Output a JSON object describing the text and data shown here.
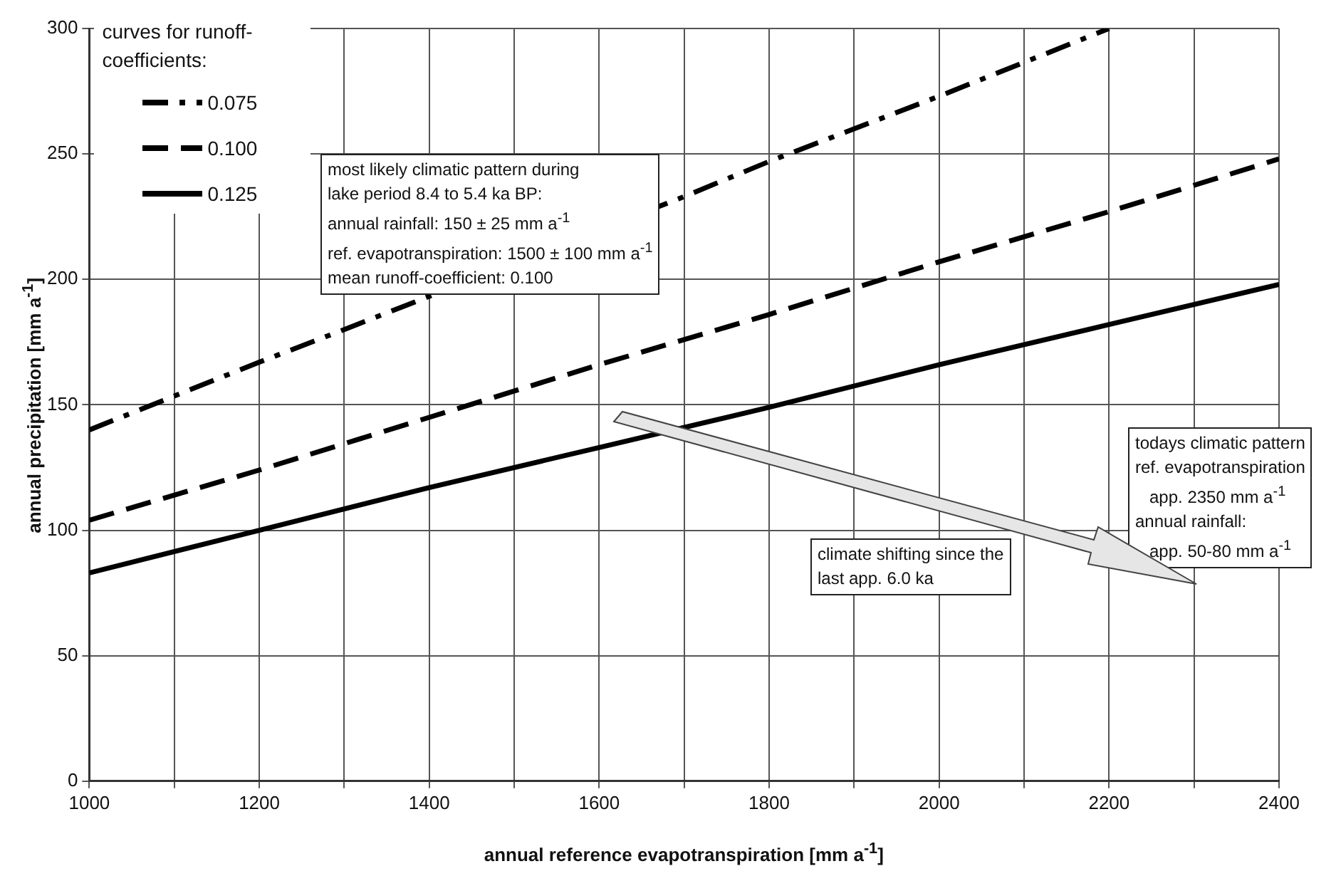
{
  "chart_data": {
    "type": "line",
    "xlabel": "annual reference evapotranspiration [mm a$^{-1}$]",
    "ylabel": "annual precipitation [mm a$^{-1}$]",
    "legend_title": "curves for runoff-coefficients:",
    "x": [
      1000,
      1200,
      1400,
      1600,
      1800,
      2000,
      2200,
      2400
    ],
    "series": [
      {
        "name": "0.075",
        "color": "#000000",
        "line_style": "dashdot",
        "x": [
          1000,
          1200,
          1300,
          1700,
          1800,
          2000,
          2200
        ],
        "values": [
          140,
          167,
          180,
          233,
          247,
          273,
          300
        ]
      },
      {
        "name": "0.100",
        "color": "#000000",
        "line_style": "dashed",
        "values": [
          104,
          124,
          145,
          166,
          186,
          207,
          227,
          248
        ]
      },
      {
        "name": "0.125",
        "color": "#000000",
        "line_style": "solid",
        "values": [
          83,
          100,
          117,
          133,
          149,
          166,
          182,
          198
        ]
      }
    ],
    "xlim": [
      1000,
      2400
    ],
    "xticks": [
      1000,
      {
        "value": 1100,
        "label": null
      },
      1200,
      {
        "value": 1300,
        "label": null
      },
      1400,
      {
        "value": 1500,
        "label": null
      },
      1600,
      {
        "value": 1700,
        "label": null
      },
      1800,
      {
        "value": 1900,
        "label": null
      },
      2000,
      {
        "value": 2100,
        "label": null
      },
      2200,
      {
        "value": 2300,
        "label": null
      },
      2400
    ],
    "ylim": [
      0,
      300
    ],
    "yticks": [
      0,
      50,
      100,
      150,
      200,
      250,
      300
    ],
    "grid": true,
    "legend": "top left",
    "marker": "none",
    "annotations": [
      "most likely climatic pattern during\nlake period 8.4 to 5.4 ka BP:\nannual rainfall: 150 ± 25 mm a$^{-1}$\nref. evapotranspiration: 1500 ± 100 mm a$^{-1}$\nmean runoff-coefficient: 0.100",
      "climate shifting since the\nlast app. 6.0 ka",
      "todays climatic pattern\nref. evapotranspiration\n   app. 2350 mm a$^{-1}$\nannual rainfall:\n   app. 50-80 mm a$^{-1}$"
    ]
  }
}
